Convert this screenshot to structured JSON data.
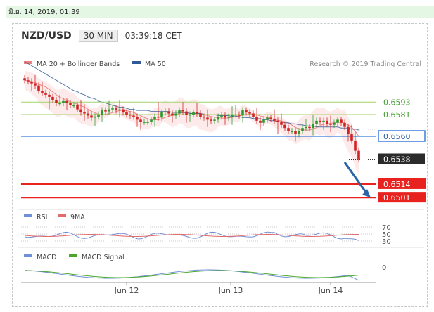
{
  "topbar": {
    "timestamp": "มิ.ย. 14, 2019, 01:39"
  },
  "header": {
    "symbol": "NZD/USD",
    "timeframe": "30 MIN",
    "time": "03:39:18 CET"
  },
  "colors": {
    "ma20": "#f08080",
    "ma50": "#2d5a96",
    "bull": "#2e9a2e",
    "bear": "#d32222",
    "support": "#e8231f",
    "resistance": "#a6d36a",
    "pivot": "#3b7ddd",
    "arrow": "#2a64a7",
    "rsi": "#6f8fd6",
    "rsi9": "#e26a6a",
    "macd": "#6f8fd6",
    "macd_signal": "#4aa82c"
  },
  "chart_data": {
    "type": "candlestick",
    "legend": {
      "ma20": "MA 20 + Bollinger Bands",
      "ma50": "MA 50"
    },
    "copyright": "Research © 2019 Trading Central",
    "ylim": [
      0.6495,
      0.6625
    ],
    "x_labels": [
      "Jun 12",
      "Jun 13",
      "Jun 14"
    ],
    "levels": [
      {
        "label": "0.6593",
        "value": 0.6593,
        "kind": "resistance"
      },
      {
        "label": "0.6581",
        "value": 0.6581,
        "kind": "resistance"
      },
      {
        "label": "0.6560",
        "value": 0.656,
        "kind": "pivot"
      },
      {
        "label": "0.6538",
        "value": 0.6538,
        "kind": "last"
      },
      {
        "label": "0.6514",
        "value": 0.6514,
        "kind": "support"
      },
      {
        "label": "0.6501",
        "value": 0.6501,
        "kind": "support"
      }
    ],
    "arrow": {
      "from": 0.6535,
      "to": 0.6501
    },
    "close": [
      0.6614,
      0.6613,
      0.6611,
      0.6609,
      0.6604,
      0.6602,
      0.66,
      0.6598,
      0.6595,
      0.6592,
      0.6592,
      0.6594,
      0.6592,
      0.659,
      0.659,
      0.6586,
      0.6583,
      0.6582,
      0.658,
      0.6578,
      0.6579,
      0.6581,
      0.6585,
      0.6584,
      0.6586,
      0.6587,
      0.6585,
      0.6586,
      0.6583,
      0.6581,
      0.658,
      0.6579,
      0.6576,
      0.6574,
      0.6574,
      0.6574,
      0.6576,
      0.6579,
      0.6578,
      0.6583,
      0.6584,
      0.6582,
      0.658,
      0.6582,
      0.6585,
      0.6584,
      0.6581,
      0.6581,
      0.6583,
      0.6582,
      0.6579,
      0.6578,
      0.6576,
      0.6575,
      0.6576,
      0.6579,
      0.658,
      0.6578,
      0.6579,
      0.6581,
      0.6581,
      0.658,
      0.6585,
      0.6583,
      0.6582,
      0.6579,
      0.6575,
      0.6573,
      0.6576,
      0.6578,
      0.6577,
      0.6575,
      0.6574,
      0.6571,
      0.6568,
      0.6565,
      0.6565,
      0.6562,
      0.6565,
      0.6568,
      0.6569,
      0.6568,
      0.6572,
      0.6575,
      0.6574,
      0.6575,
      0.6572,
      0.6571,
      0.6573,
      0.6576,
      0.6573,
      0.6569,
      0.6562,
      0.6556,
      0.6546,
      0.6538
    ],
    "ma50": [
      0.6632,
      0.663,
      0.6628,
      0.6626,
      0.6624,
      0.6622,
      0.662,
      0.6618,
      0.6616,
      0.6614,
      0.6612,
      0.661,
      0.6608,
      0.6606,
      0.6604,
      0.6603,
      0.6601,
      0.66,
      0.6598,
      0.6597,
      0.6596,
      0.6594,
      0.6593,
      0.6592,
      0.6591,
      0.659,
      0.6589,
      0.6588,
      0.6588,
      0.6587,
      0.6586,
      0.6586,
      0.6585,
      0.6585,
      0.6585,
      0.6585,
      0.6584,
      0.6584,
      0.6584,
      0.6584,
      0.6584,
      0.6584,
      0.6583,
      0.6583,
      0.6583,
      0.6583,
      0.6583,
      0.6582,
      0.6582,
      0.6582,
      0.6582,
      0.6581,
      0.6581,
      0.6581,
      0.6581,
      0.658,
      0.658,
      0.658,
      0.658,
      0.6579,
      0.6579,
      0.6579,
      0.6578,
      0.6578,
      0.6578,
      0.6577,
      0.6577,
      0.6577,
      0.6576,
      0.6576,
      0.6575,
      0.6575,
      0.6574,
      0.6574,
      0.6573,
      0.6573,
      0.6572,
      0.6572,
      0.6571,
      0.6571,
      0.657,
      0.657,
      0.657,
      0.6569,
      0.6569,
      0.6569,
      0.6569,
      0.6569,
      0.6569,
      0.6569,
      0.6568,
      0.6568,
      0.6568,
      0.6567,
      0.6567,
      0.6566
    ],
    "rsi": {
      "label": "RSI",
      "ma_label": "9MA",
      "ticks": [
        "70",
        "50",
        "30"
      ]
    },
    "macd": {
      "label": "MACD",
      "signal_label": "MACD Signal",
      "ticks": [
        "0"
      ]
    }
  }
}
